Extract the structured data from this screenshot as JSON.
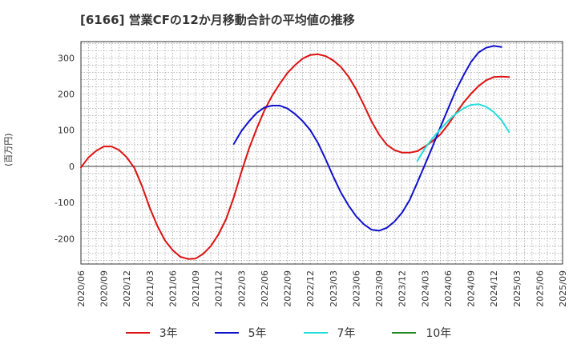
{
  "chart_data": {
    "type": "line",
    "title": "[6166]  営業CFの12か月移動合計の平均値の推移",
    "ylabel": "(百万円)",
    "xlabel": "",
    "ylim": [
      -270,
      345
    ],
    "yticks": [
      300,
      200,
      100,
      0,
      -100,
      -200
    ],
    "x_tick_labels": [
      "2020/06",
      "2020/09",
      "2020/12",
      "2021/03",
      "2021/06",
      "2021/09",
      "2021/12",
      "2022/03",
      "2022/06",
      "2022/09",
      "2022/12",
      "2023/03",
      "2023/06",
      "2023/09",
      "2023/12",
      "2024/03",
      "2024/06",
      "2024/09",
      "2024/12",
      "2025/03",
      "2025/06",
      "2025/09"
    ],
    "x_start": "2020/06",
    "grid": true,
    "legend_position": "bottom",
    "series": [
      {
        "name": "3年",
        "color": "#dd1111",
        "start": "2020/06",
        "values": [
          -3,
          25,
          43,
          55,
          55,
          45,
          25,
          -5,
          -55,
          -115,
          -165,
          -205,
          -232,
          -250,
          -256,
          -255,
          -242,
          -220,
          -188,
          -145,
          -85,
          -15,
          50,
          105,
          155,
          195,
          228,
          258,
          280,
          298,
          308,
          310,
          305,
          293,
          275,
          248,
          213,
          170,
          125,
          88,
          60,
          45,
          38,
          38,
          42,
          55,
          70,
          88,
          115,
          145,
          175,
          200,
          222,
          238,
          247,
          248,
          247
        ]
      },
      {
        "name": "5年",
        "color": "#1111cc",
        "start": "2022/02",
        "values": [
          62,
          98,
          125,
          148,
          163,
          168,
          168,
          160,
          145,
          125,
          100,
          65,
          20,
          -28,
          -72,
          -108,
          -138,
          -160,
          -175,
          -178,
          -170,
          -153,
          -128,
          -93,
          -45,
          5,
          55,
          108,
          158,
          208,
          250,
          288,
          315,
          328,
          333,
          330
        ]
      },
      {
        "name": "7年",
        "color": "#22dddd",
        "start": "2024/02",
        "values": [
          15,
          50,
          78,
          102,
          125,
          145,
          160,
          170,
          172,
          165,
          150,
          128,
          95
        ]
      },
      {
        "name": "10年",
        "color": "#228822",
        "start": "2025/09",
        "values": []
      }
    ]
  }
}
